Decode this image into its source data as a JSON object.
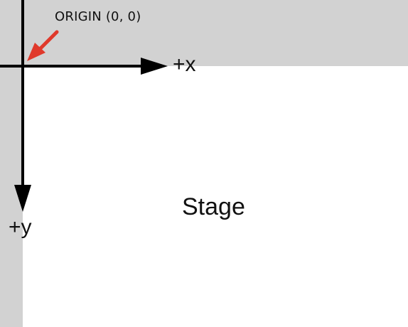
{
  "labels": {
    "origin": "ORIGIN (0, 0)",
    "x_axis": "+x",
    "y_axis": "+y",
    "stage": "Stage"
  },
  "colors": {
    "background": "#d2d2d2",
    "stage": "#ffffff",
    "axis": "#000000",
    "origin_pointer": "#e0392b"
  }
}
